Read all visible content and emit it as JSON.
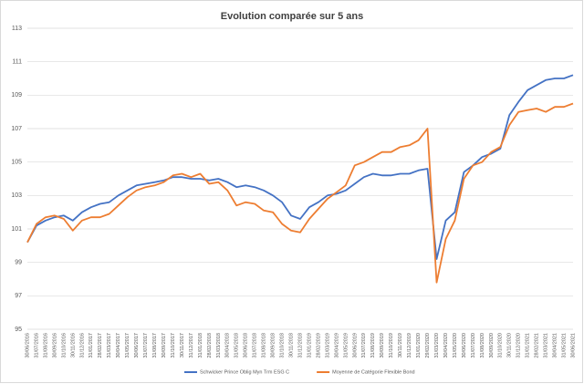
{
  "chart_data": {
    "type": "line",
    "title": "Evolution comparée sur 5 ans",
    "categories": [
      "30/06/2016",
      "31/07/2016",
      "31/08/2016",
      "30/09/2016",
      "31/10/2016",
      "30/11/2016",
      "31/12/2016",
      "31/01/2017",
      "28/02/2017",
      "31/03/2017",
      "30/04/2017",
      "31/05/2017",
      "30/06/2017",
      "31/07/2017",
      "31/08/2017",
      "30/09/2017",
      "31/10/2017",
      "30/11/2017",
      "31/12/2017",
      "31/01/2018",
      "28/02/2018",
      "31/03/2018",
      "30/04/2018",
      "31/05/2018",
      "30/06/2018",
      "31/07/2018",
      "31/08/2018",
      "30/09/2018",
      "31/10/2018",
      "30/11/2018",
      "31/12/2018",
      "31/01/2019",
      "28/02/2019",
      "31/03/2019",
      "30/04/2019",
      "31/05/2019",
      "30/06/2019",
      "31/07/2019",
      "31/08/2019",
      "30/09/2019",
      "31/10/2019",
      "30/11/2019",
      "31/12/2019",
      "31/01/2020",
      "29/02/2020",
      "31/03/2020",
      "30/04/2020",
      "31/05/2020",
      "30/06/2020",
      "31/07/2020",
      "31/08/2020",
      "30/09/2020",
      "31/10/2020",
      "30/11/2020",
      "31/12/2020",
      "31/01/2021",
      "28/02/2021",
      "31/03/2021",
      "30/04/2021",
      "31/05/2021",
      "30/06/2021"
    ],
    "series": [
      {
        "name": "Schwicker Prince Oblig Myn Trm ESG C",
        "color": "#4472c4",
        "values": [
          100.2,
          101.2,
          101.5,
          101.7,
          101.8,
          101.5,
          102.0,
          102.3,
          102.5,
          102.6,
          103.0,
          103.3,
          103.6,
          103.7,
          103.8,
          103.9,
          104.1,
          104.1,
          104.0,
          104.0,
          103.9,
          104.0,
          103.8,
          103.5,
          103.6,
          103.5,
          103.3,
          103.0,
          102.6,
          101.8,
          101.6,
          102.3,
          102.6,
          103.0,
          103.1,
          103.3,
          103.7,
          104.1,
          104.3,
          104.2,
          104.2,
          104.3,
          104.3,
          104.5,
          104.6,
          99.2,
          101.5,
          102.0,
          104.4,
          104.8,
          105.3,
          105.5,
          105.8,
          107.8,
          108.6,
          109.3,
          109.6,
          109.9,
          110.0,
          110.0,
          110.2
        ]
      },
      {
        "name": "Moyenne de Catégorie Flexible Bond",
        "color": "#ed7d31",
        "values": [
          100.2,
          101.3,
          101.7,
          101.8,
          101.6,
          100.9,
          101.5,
          101.7,
          101.7,
          101.9,
          102.4,
          102.9,
          103.3,
          103.5,
          103.6,
          103.8,
          104.2,
          104.3,
          104.1,
          104.3,
          103.7,
          103.8,
          103.3,
          102.4,
          102.6,
          102.5,
          102.1,
          102.0,
          101.3,
          100.9,
          100.8,
          101.6,
          102.2,
          102.8,
          103.2,
          103.6,
          104.8,
          105.0,
          105.3,
          105.6,
          105.6,
          105.9,
          106.0,
          106.3,
          107.0,
          97.8,
          100.4,
          101.5,
          104.0,
          104.8,
          105.0,
          105.6,
          105.9,
          107.2,
          108.0,
          108.1,
          108.2,
          108.0,
          108.3,
          108.3,
          108.5
        ]
      }
    ],
    "ylim": [
      95,
      113
    ],
    "yticks": [
      95,
      97,
      99,
      101,
      103,
      105,
      107,
      109,
      111,
      113
    ],
    "grid": true,
    "legend": "bottom"
  }
}
